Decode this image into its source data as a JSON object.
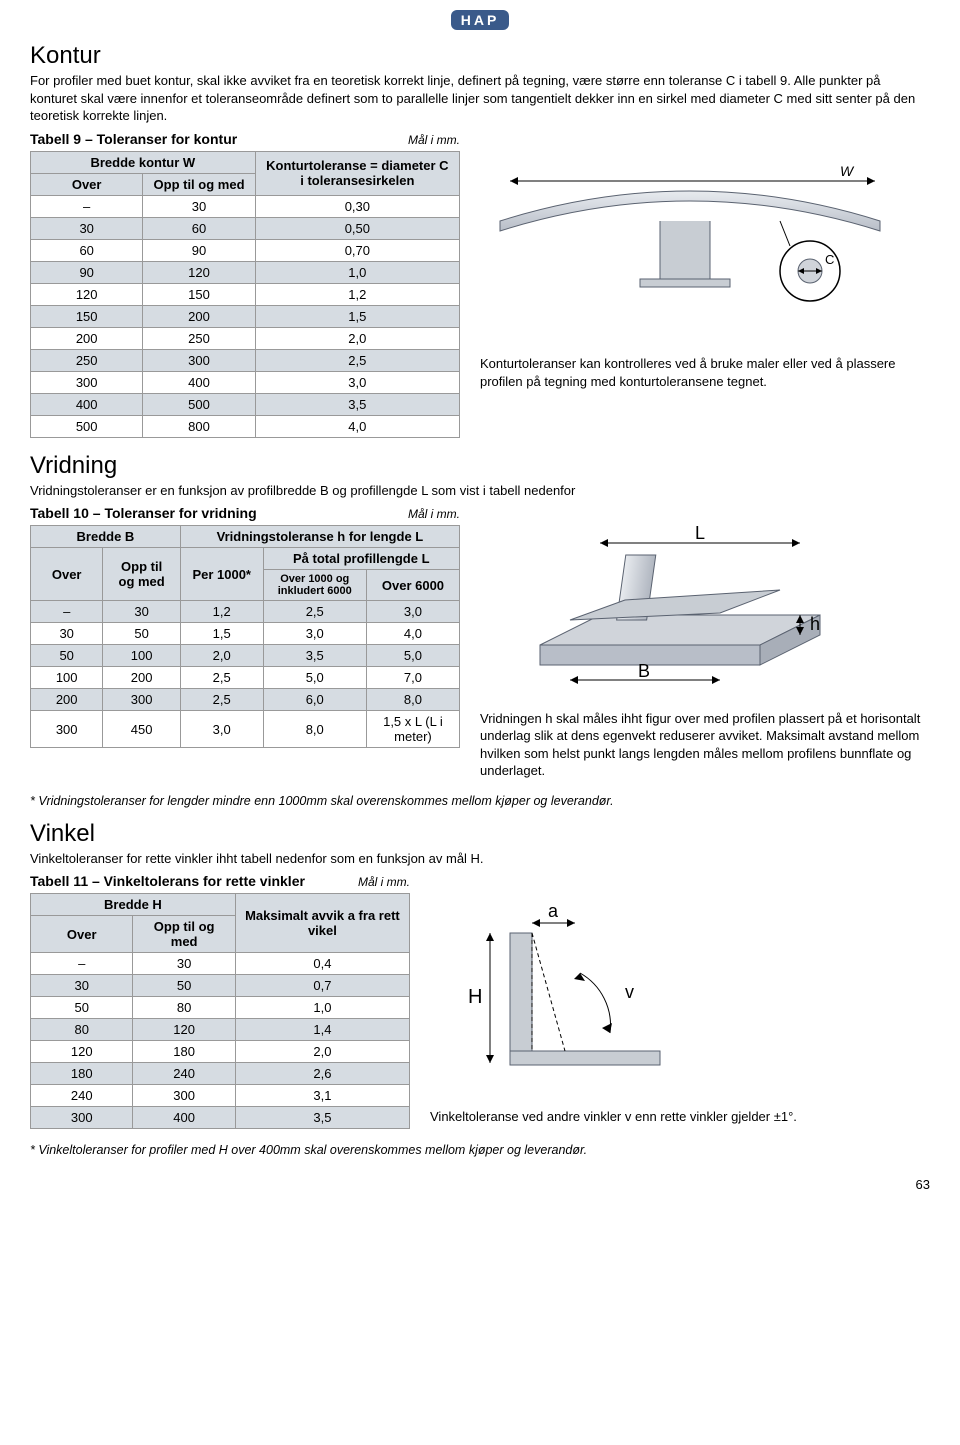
{
  "logo": "HAP",
  "page_number": "63",
  "sections": {
    "kontur": {
      "heading": "Kontur",
      "intro": "For profiler med  buet kontur, skal ikke avviket fra en teoretisk korrekt linje, definert på tegning, være større enn toleranse C i tabell 9. Alle punkter på konturet skal være innenfor et toleranseområde definert som to parallelle linjer som tangentielt dekker inn en sirkel med diameter C med sitt senter på den teoretisk korrekte linjen.",
      "table_title": "Tabell 9 – Toleranser for kontur",
      "unit": "Mål i mm.",
      "col_group1": "Bredde kontur W",
      "col1": "Over",
      "col2": "Opp til og med",
      "col3": "Konturtoleranse = diameter C i toleransesirkelen",
      "rows": [
        [
          "–",
          "30",
          "0,30"
        ],
        [
          "30",
          "60",
          "0,50"
        ],
        [
          "60",
          "90",
          "0,70"
        ],
        [
          "90",
          "120",
          "1,0"
        ],
        [
          "120",
          "150",
          "1,2"
        ],
        [
          "150",
          "200",
          "1,5"
        ],
        [
          "200",
          "250",
          "2,0"
        ],
        [
          "250",
          "300",
          "2,5"
        ],
        [
          "300",
          "400",
          "3,0"
        ],
        [
          "400",
          "500",
          "3,5"
        ],
        [
          "500",
          "800",
          "4,0"
        ]
      ],
      "caption": "Konturtoleranser kan kontrolleres ved å bruke maler eller ved å plassere profilen på tegning med konturtoleransene tegnet.",
      "label_W": "W",
      "label_C": "C"
    },
    "vridning": {
      "heading": "Vridning",
      "intro": "Vridningstoleranser er en funksjon av profilbredde B og profillengde L som vist i tabell nedenfor",
      "table_title": "Tabell 10 – Toleranser for vridning",
      "unit": "Mål i mm.",
      "col_group1": "Bredde B",
      "col_group2": "Vridningstoleranse h for lengde L",
      "col_group3": "På total profillengde L",
      "col1": "Over",
      "col2": "Opp til og med",
      "col3": "Per 1000*",
      "col4": "Over 1000 og inkludert 6000",
      "col5": "Over 6000",
      "rows": [
        [
          "–",
          "30",
          "1,2",
          "2,5",
          "3,0"
        ],
        [
          "30",
          "50",
          "1,5",
          "3,0",
          "4,0"
        ],
        [
          "50",
          "100",
          "2,0",
          "3,5",
          "5,0"
        ],
        [
          "100",
          "200",
          "2,5",
          "5,0",
          "7,0"
        ],
        [
          "200",
          "300",
          "2,5",
          "6,0",
          "8,0"
        ],
        [
          "300",
          "450",
          "3,0",
          "8,0",
          "1,5 x L (L i meter)"
        ]
      ],
      "caption": "Vridningen h skal måles ihht figur over med profilen plassert på et horisontalt underlag slik at dens egenvekt reduserer avviket. Maksimalt avstand mellom hvilken som helst punkt langs lengden måles mellom profilens bunnflate og underlaget.",
      "footnote": "* Vridningstoleranser for lengder mindre enn 1000mm skal overenskommes mellom kjøper og leverandør.",
      "label_L": "L",
      "label_B": "B",
      "label_h": "h"
    },
    "vinkel": {
      "heading": "Vinkel",
      "intro": "Vinkeltoleranser for rette vinkler ihht tabell nedenfor som en funksjon av mål H.",
      "table_title": "Tabell 11 – Vinkeltolerans for rette vinkler",
      "unit": "Mål i mm.",
      "col_group1": "Bredde H",
      "col1": "Over",
      "col2": "Opp til og med",
      "col3": "Maksimalt avvik a fra rett vikel",
      "rows": [
        [
          "–",
          "30",
          "0,4"
        ],
        [
          "30",
          "50",
          "0,7"
        ],
        [
          "50",
          "80",
          "1,0"
        ],
        [
          "80",
          "120",
          "1,4"
        ],
        [
          "120",
          "180",
          "2,0"
        ],
        [
          "180",
          "240",
          "2,6"
        ],
        [
          "240",
          "300",
          "3,1"
        ],
        [
          "300",
          "400",
          "3,5"
        ]
      ],
      "caption": "Vinkeltoleranse ved andre vinkler v enn rette vinkler gjelder ±1°.",
      "footnote": "* Vinkeltoleranser for profiler med H over 400mm skal overenskommes mellom kjøper og leverandør.",
      "label_a": "a",
      "label_H": "H",
      "label_v": "v"
    }
  },
  "colors": {
    "shade": "#d6dce2",
    "border": "#999999",
    "diagram_fill": "#c8cdd3",
    "diagram_stroke": "#5a6270",
    "logo_bg": "#3a5a8a"
  }
}
